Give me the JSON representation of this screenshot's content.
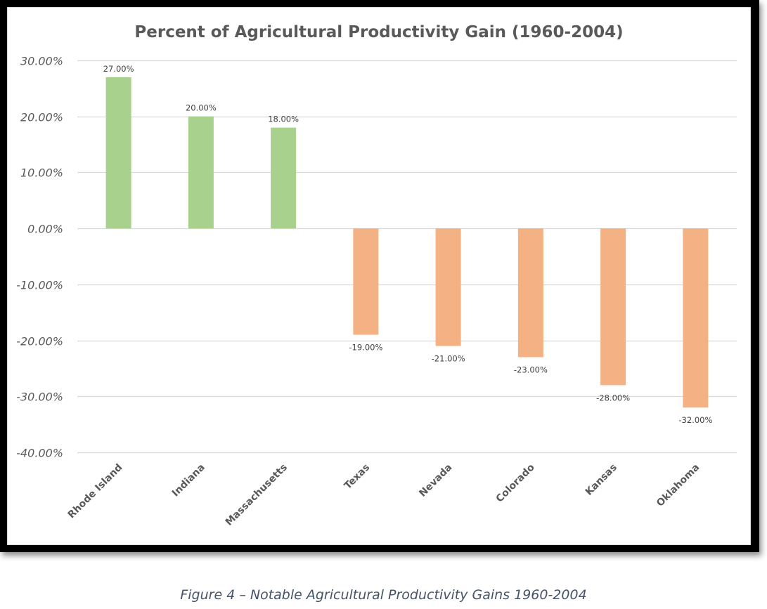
{
  "chart_data": {
    "type": "bar",
    "title": "Percent of Agricultural Productivity Gain (1960-2004)",
    "xlabel": "",
    "ylabel": "",
    "categories": [
      "Rhode Island",
      "Indiana",
      "Massachusetts",
      "Texas",
      "Nevada",
      "Colorado",
      "Kansas",
      "Oklahoma"
    ],
    "values": [
      27,
      20,
      18,
      -19,
      -21,
      -23,
      -28,
      -32
    ],
    "data_labels": [
      "27.00%",
      "20.00%",
      "18.00%",
      "-19.00%",
      "-21.00%",
      "-23.00%",
      "-28.00%",
      "-32.00%"
    ],
    "ylim": [
      -40,
      30
    ],
    "yticks": [
      30,
      20,
      10,
      0,
      -10,
      -20,
      -30,
      -40
    ],
    "ytick_labels": [
      "30.00%",
      "20.00%",
      "10.00%",
      "0.00%",
      "-10.00%",
      "-20.00%",
      "-30.00%",
      "-40.00%"
    ],
    "grid": true,
    "legend": "none",
    "colors": {
      "positive": "#a9d18e",
      "negative": "#f4b183",
      "gridline": "#d9d9d9"
    }
  },
  "caption": "Figure 4 – Notable Agricultural Productivity Gains 1960-2004"
}
